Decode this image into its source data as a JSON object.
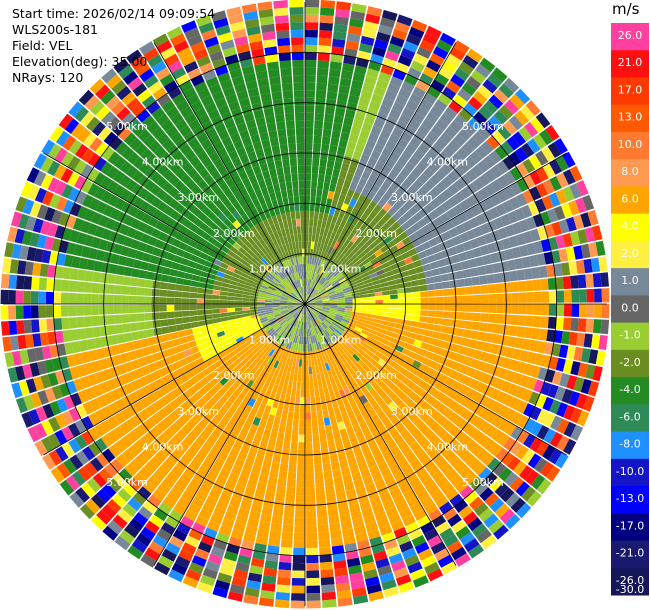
{
  "header": {
    "start_time": "Start time: 2026/02/14 09:09:54",
    "instrument": "WLS200s-181",
    "field": "Field: VEL",
    "elevation": "Elevation(deg): 35.00",
    "nrays": "NRays: 120"
  },
  "chart_data": {
    "type": "heatmap",
    "projection": "polar-ppi",
    "field": "VEL",
    "nrays": 120,
    "max_range_km": 6.0,
    "range_rings_km": [
      1,
      2,
      3,
      4,
      5
    ],
    "range_ring_labels": [
      "1.00km",
      "2.00km",
      "3.00km",
      "4.00km",
      "5.00km"
    ],
    "colorbar": {
      "unit": "m/s",
      "ticks": [
        "26.0",
        "21.0",
        "17.0",
        "13.0",
        "10.0",
        "8.0",
        "6.0",
        "4.0",
        "2.0",
        "1.0",
        "0.0",
        "-1.0",
        "-2.0",
        "-4.0",
        "-6.0",
        "-8.0",
        "-10.0",
        "-13.0",
        "-17.0",
        "-21.0",
        "-26.0",
        "-30.0"
      ],
      "colors": [
        "#ff40a0",
        "#ff1010",
        "#ff3a00",
        "#ff5a00",
        "#ff7a30",
        "#ff9a50",
        "#ffa500",
        "#ffff00",
        "#ffef40",
        "#778899",
        "#666666",
        "#9acd32",
        "#6b8e23",
        "#228b22",
        "#2e8b57",
        "#1e90ff",
        "#1515c8",
        "#0000ff",
        "#000080",
        "#191970",
        "#16165a"
      ]
    },
    "regions": [
      {
        "sector": "north-west",
        "range_km": [
          1.0,
          4.8
        ],
        "velocity_ms": -6.0
      },
      {
        "sector": "west",
        "range_km": [
          0.8,
          4.8
        ],
        "velocity_ms": -2.0
      },
      {
        "sector": "east",
        "range_km": [
          0.8,
          4.8
        ],
        "velocity_ms": -2.0
      },
      {
        "sector": "north-east",
        "range_km": [
          2.5,
          4.6
        ],
        "velocity_ms": 0.0
      },
      {
        "sector": "south",
        "range_km": [
          0.8,
          4.6
        ],
        "velocity_ms": 4.0
      },
      {
        "sector": "near-center",
        "range_km": [
          0.0,
          1.0
        ],
        "velocity_ms": 0.0
      },
      {
        "sector": "outer-ring",
        "range_km": [
          4.6,
          6.0
        ],
        "velocity_ms": "noise"
      }
    ]
  }
}
